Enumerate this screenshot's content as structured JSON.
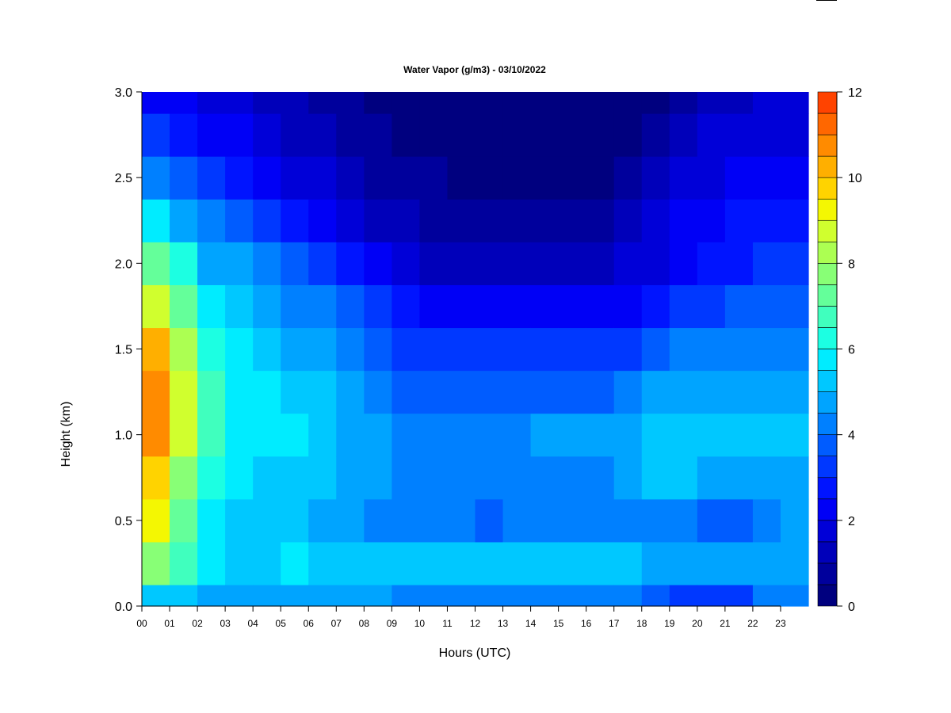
{
  "chart_data": {
    "type": "heatmap",
    "title": "Water Vapor (g/m3) - 03/10/2022",
    "xlabel": "Hours (UTC)",
    "ylabel": "Height (km)",
    "x_ticks": [
      "00",
      "01",
      "02",
      "03",
      "04",
      "05",
      "06",
      "07",
      "08",
      "09",
      "10",
      "11",
      "12",
      "13",
      "14",
      "15",
      "16",
      "17",
      "18",
      "19",
      "20",
      "21",
      "22",
      "23"
    ],
    "y_ticks": [
      "0.0",
      "0.5",
      "1.0",
      "1.5",
      "2.0",
      "2.5",
      "3.0"
    ],
    "xlim": [
      0,
      24
    ],
    "ylim": [
      0,
      3.0
    ],
    "colorbar": {
      "ticks": [
        "0",
        "2",
        "4",
        "6",
        "8",
        "10",
        "12"
      ],
      "min": 0,
      "max": 12,
      "step": 0.5,
      "colors": [
        "#00007F",
        "#00009C",
        "#0000BA",
        "#0000D8",
        "#0000F6",
        "#0014FF",
        "#0038FF",
        "#005CFF",
        "#0080FF",
        "#00A4FF",
        "#00C8FF",
        "#00ECFF",
        "#1CFFE2",
        "#40FFBE",
        "#64FF9A",
        "#88FF76",
        "#ACFF52",
        "#D0FF2E",
        "#F4F702",
        "#FFD300",
        "#FFAF00",
        "#FF8B00",
        "#FF6700",
        "#FF4300"
      ]
    },
    "heights": [
      0.0,
      0.25,
      0.5,
      0.75,
      1.0,
      1.25,
      1.5,
      1.75,
      2.0,
      2.25,
      2.5,
      2.75,
      3.0
    ],
    "hours": [
      0,
      1,
      2,
      3,
      4,
      5,
      6,
      7,
      8,
      9,
      10,
      11,
      12,
      13,
      14,
      15,
      16,
      17,
      18,
      19,
      20,
      21,
      22,
      23
    ],
    "values": [
      [
        5.0,
        7.5,
        9.0,
        9.5,
        10.5,
        10.5,
        10.0,
        8.5,
        7.0,
        5.5,
        4.0,
        3.0,
        2.0
      ],
      [
        5.0,
        6.5,
        7.0,
        7.5,
        8.5,
        8.5,
        8.0,
        7.0,
        6.0,
        4.5,
        3.5,
        2.5,
        2.0
      ],
      [
        4.5,
        5.5,
        5.8,
        6.0,
        6.5,
        6.5,
        6.0,
        5.5,
        4.8,
        4.0,
        3.0,
        2.2,
        1.8
      ],
      [
        4.5,
        5.0,
        5.2,
        5.5,
        5.8,
        5.8,
        5.5,
        5.0,
        4.5,
        3.5,
        2.5,
        2.0,
        1.5
      ],
      [
        4.5,
        5.0,
        5.0,
        5.2,
        5.5,
        5.5,
        5.2,
        4.5,
        4.0,
        3.0,
        2.2,
        1.5,
        1.2
      ],
      [
        4.5,
        5.5,
        5.0,
        5.2,
        5.5,
        5.2,
        4.8,
        4.2,
        3.5,
        2.5,
        1.8,
        1.2,
        1.0
      ],
      [
        4.5,
        5.2,
        4.8,
        5.0,
        5.2,
        5.0,
        4.5,
        4.0,
        3.2,
        2.2,
        1.5,
        1.0,
        0.8
      ],
      [
        4.5,
        5.0,
        4.5,
        4.8,
        4.8,
        4.5,
        4.0,
        3.5,
        2.8,
        1.8,
        1.2,
        0.8,
        0.5
      ],
      [
        4.5,
        5.0,
        4.2,
        4.5,
        4.5,
        4.0,
        3.5,
        3.0,
        2.0,
        1.2,
        0.8,
        0.5,
        0.4
      ],
      [
        4.2,
        5.0,
        4.2,
        4.3,
        4.3,
        3.8,
        3.2,
        2.5,
        1.5,
        1.0,
        0.6,
        0.4,
        0.3
      ],
      [
        4.2,
        5.0,
        4.2,
        4.3,
        4.3,
        3.8,
        3.0,
        2.2,
        1.2,
        0.8,
        0.5,
        0.3,
        0.2
      ],
      [
        4.2,
        5.0,
        4.2,
        4.3,
        4.3,
        3.8,
        3.0,
        2.0,
        1.2,
        0.8,
        0.4,
        0.3,
        0.2
      ],
      [
        4.2,
        5.0,
        3.8,
        4.3,
        4.3,
        3.8,
        3.0,
        2.0,
        1.0,
        0.6,
        0.3,
        0.2,
        0.1
      ],
      [
        4.2,
        5.0,
        4.2,
        4.3,
        4.3,
        3.8,
        3.0,
        2.0,
        1.0,
        0.5,
        0.2,
        0.1,
        0.1
      ],
      [
        4.2,
        5.0,
        4.2,
        4.3,
        4.5,
        3.8,
        3.0,
        2.0,
        1.0,
        0.5,
        0.2,
        0.1,
        0.1
      ],
      [
        4.2,
        5.0,
        4.2,
        4.3,
        4.5,
        3.8,
        3.0,
        2.0,
        1.0,
        0.5,
        0.2,
        0.1,
        0.1
      ],
      [
        4.2,
        5.0,
        4.2,
        4.3,
        4.5,
        3.8,
        3.0,
        2.0,
        1.2,
        0.5,
        0.3,
        0.1,
        0.1
      ],
      [
        4.2,
        5.0,
        4.2,
        4.5,
        4.8,
        4.0,
        3.2,
        2.2,
        1.5,
        1.0,
        0.5,
        0.3,
        0.2
      ],
      [
        3.5,
        4.8,
        4.2,
        5.0,
        5.2,
        4.5,
        3.5,
        2.5,
        1.8,
        1.5,
        1.0,
        0.6,
        0.4
      ],
      [
        3.2,
        4.8,
        4.0,
        5.0,
        5.3,
        4.5,
        4.0,
        3.0,
        2.2,
        2.0,
        1.5,
        1.0,
        0.8
      ],
      [
        3.2,
        4.5,
        3.8,
        4.8,
        5.2,
        4.5,
        4.0,
        3.2,
        2.5,
        2.2,
        1.8,
        1.5,
        1.0
      ],
      [
        3.2,
        4.5,
        3.8,
        4.8,
        5.0,
        4.5,
        4.0,
        3.5,
        2.8,
        2.5,
        2.0,
        1.6,
        1.2
      ],
      [
        4.0,
        4.8,
        4.2,
        4.8,
        5.0,
        4.5,
        4.0,
        3.5,
        3.0,
        2.5,
        2.0,
        1.8,
        1.5
      ],
      [
        4.2,
        4.8,
        4.5,
        4.8,
        5.0,
        4.5,
        4.0,
        3.5,
        3.0,
        2.5,
        2.0,
        1.8,
        1.5
      ]
    ]
  }
}
